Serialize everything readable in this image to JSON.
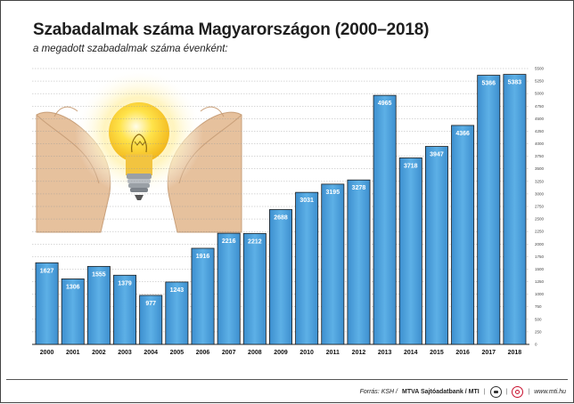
{
  "title": "Szabadalmak száma Magyarországon (2000–2018)",
  "subtitle": "a megadott szabadalmak száma évenként:",
  "footer": {
    "source": "Forrás: KSH /",
    "brand": "MTVA Sajtóadatbank / MTI",
    "url": "www.mti.hu",
    "logo1_icon": "mtva-logo-icon",
    "logo2_icon": "mti-logo-icon"
  },
  "colors": {
    "bar": "#4a9fd8",
    "bar_dark": "#2f7fc1",
    "grid": "#9a9a9a",
    "bulb_glow": "#fff5c8",
    "hands": "#e8c8a8"
  },
  "chart_data": {
    "type": "bar",
    "categories": [
      "2000",
      "2001",
      "2002",
      "2003",
      "2004",
      "2005",
      "2006",
      "2007",
      "2008",
      "2009",
      "2010",
      "2011",
      "2012",
      "2013",
      "2014",
      "2015",
      "2016",
      "2017",
      "2018"
    ],
    "values": [
      1627,
      1306,
      1555,
      1379,
      977,
      1243,
      1916,
      2216,
      2212,
      2688,
      3031,
      3195,
      3278,
      4965,
      3718,
      3947,
      4366,
      5366,
      5383
    ],
    "ylim": [
      0,
      5500
    ],
    "yticks": [
      0,
      250,
      500,
      750,
      1000,
      1250,
      1500,
      1750,
      2000,
      2250,
      2500,
      2750,
      3000,
      3250,
      3500,
      3750,
      4000,
      4250,
      4500,
      4750,
      5000,
      5250,
      5500
    ],
    "grid": true,
    "title": "Szabadalmak száma Magyarországon (2000–2018)",
    "subtitle": "a megadott szabadalmak száma évenként:",
    "decoration": [
      "lightbulb-icon",
      "hands-icon"
    ]
  }
}
